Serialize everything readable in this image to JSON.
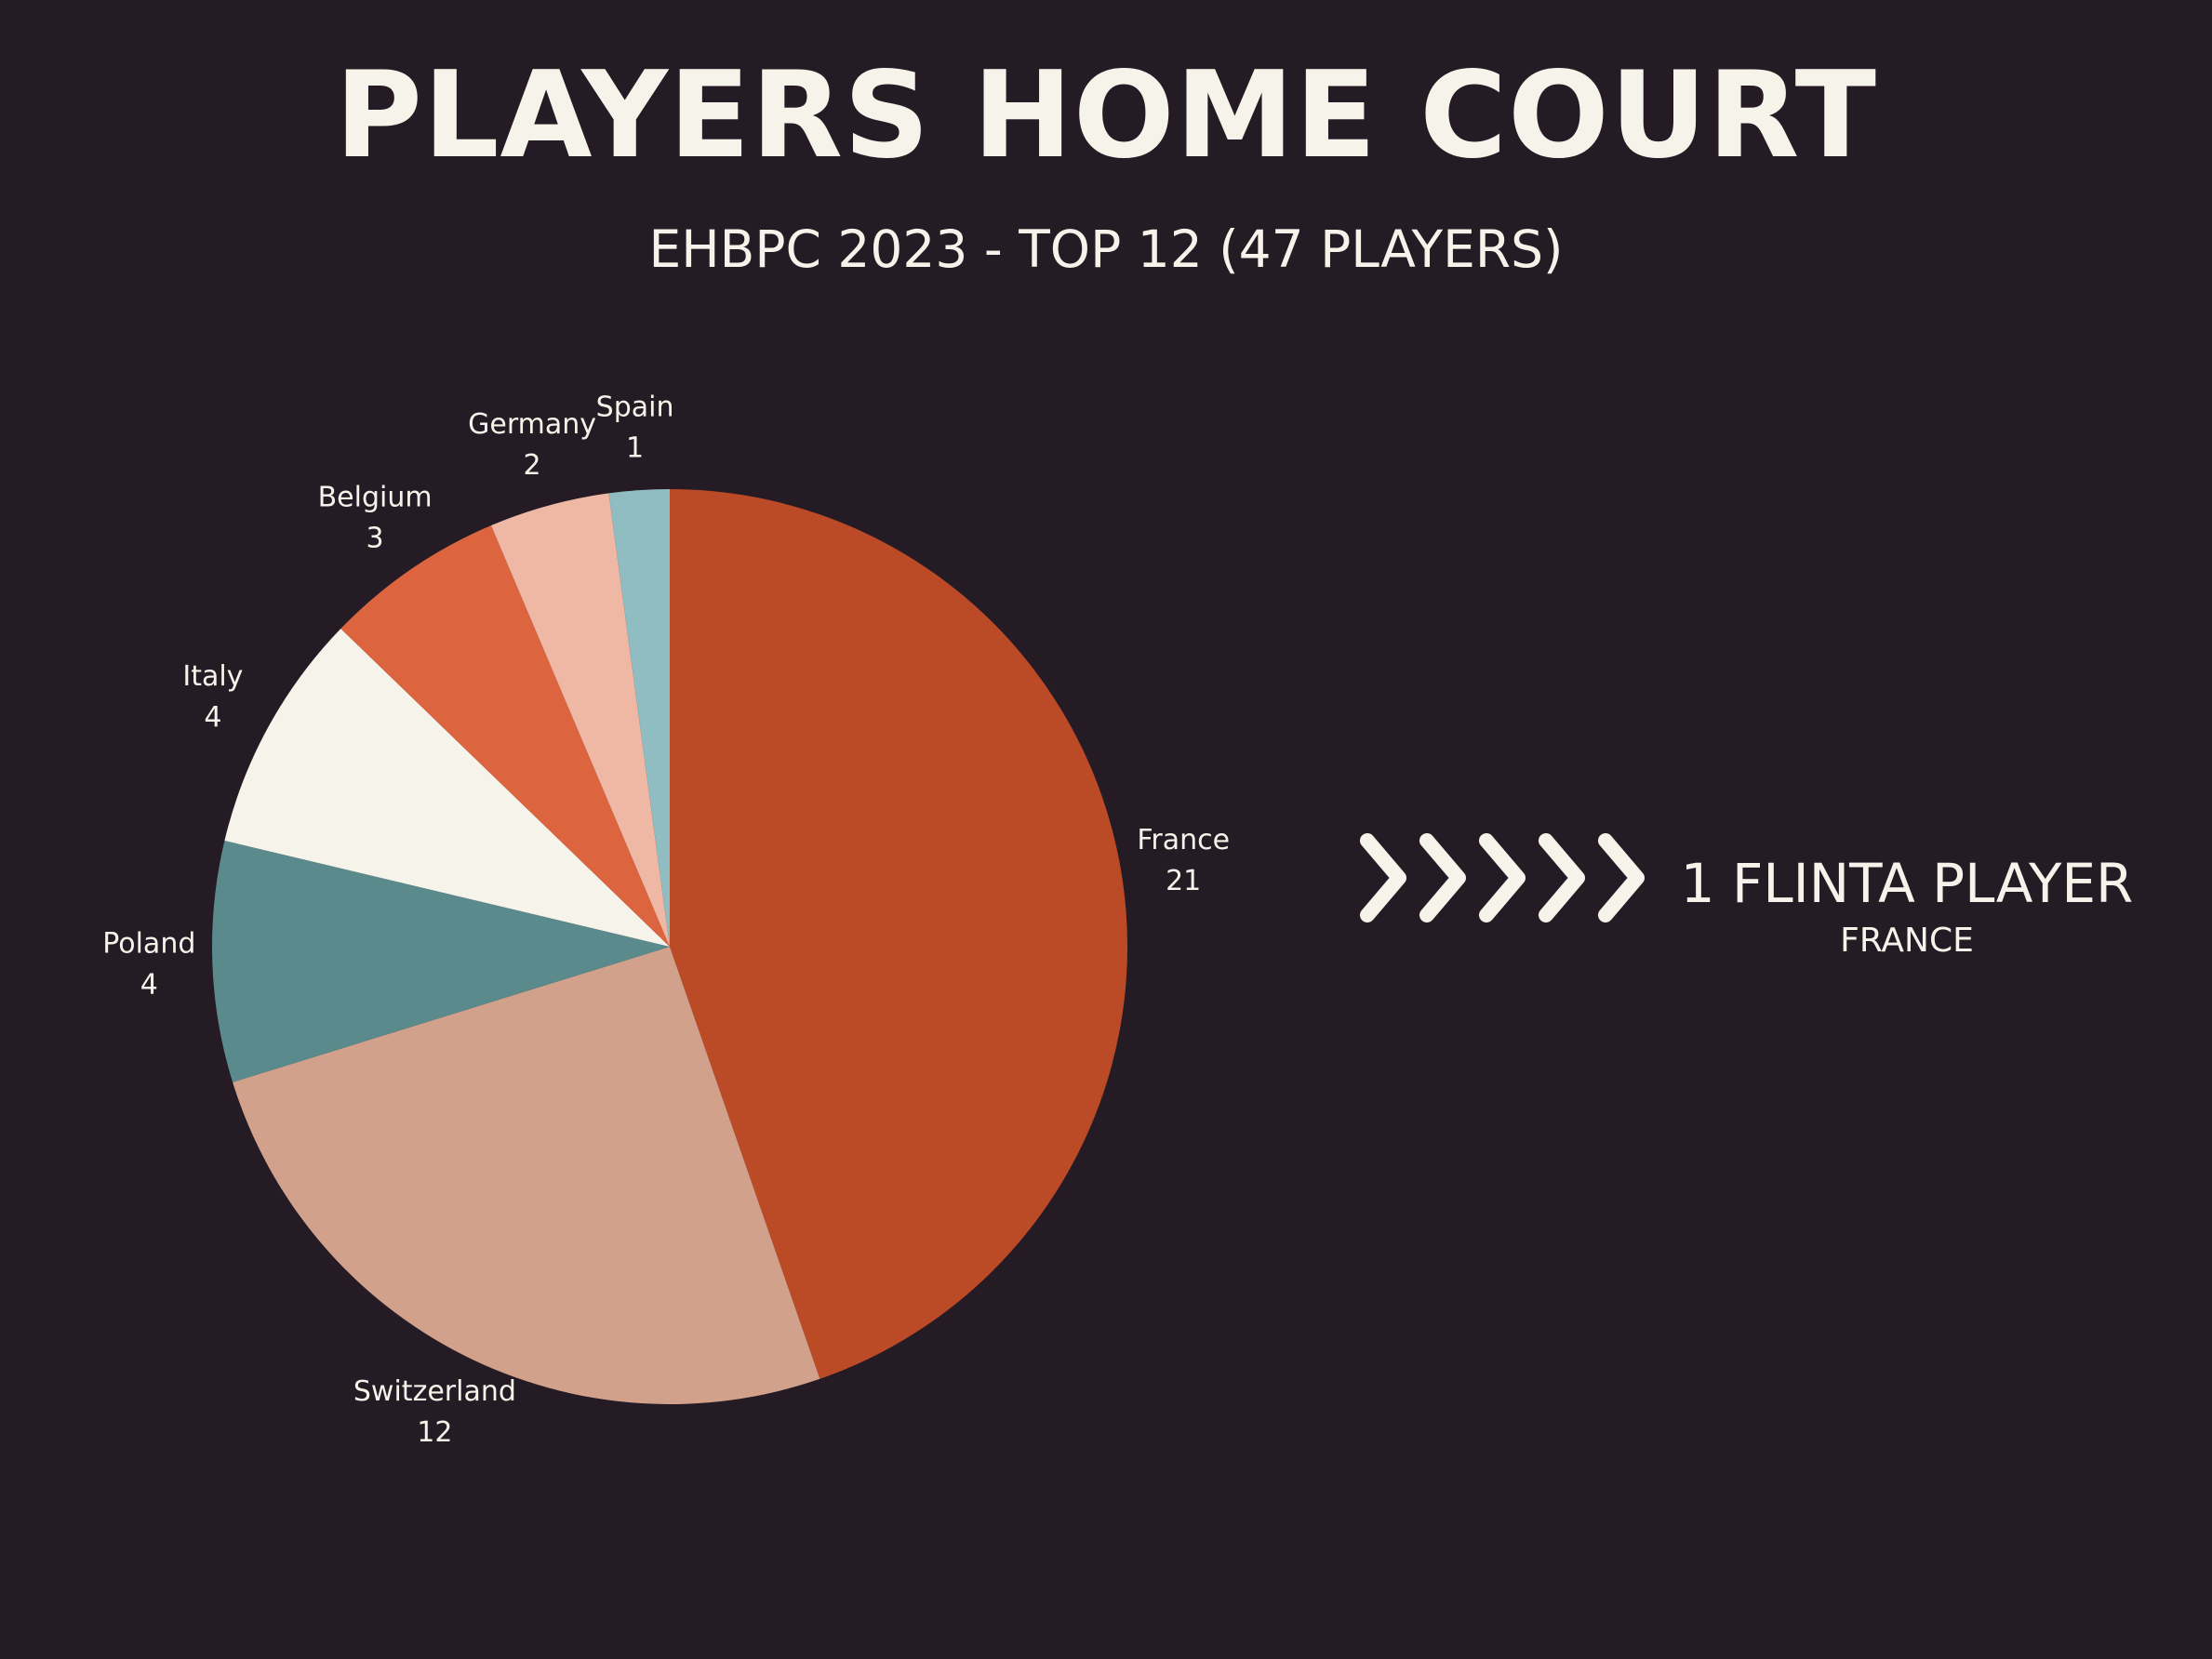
{
  "title": "PLAYERS HOME COURT",
  "subtitle": "EHBPC 2023 - TOP 12 (47 PLAYERS)",
  "callout": {
    "icon": "chevrons-right-icon",
    "main": "1 FLINTA PLAYER",
    "sub": "FRANCE"
  },
  "chart_data": {
    "type": "pie",
    "title": "PLAYERS HOME COURT",
    "subtitle": "EHBPC 2023 - TOP 12 (47 PLAYERS)",
    "start": "12 o'clock",
    "direction": "clockwise",
    "slices": [
      {
        "label": "France",
        "value": 21,
        "color": "#bb4a27"
      },
      {
        "label": "Switzerland",
        "value": 12,
        "color": "#d1a18b"
      },
      {
        "label": "Poland",
        "value": 4,
        "color": "#5a8a8c"
      },
      {
        "label": "Italy",
        "value": 4,
        "color": "#f6f4ea"
      },
      {
        "label": "Belgium",
        "value": 3,
        "color": "#dc643e"
      },
      {
        "label": "Germany",
        "value": 2,
        "color": "#eeb8a4"
      },
      {
        "label": "Spain",
        "value": 1,
        "color": "#8fbdc1"
      }
    ]
  }
}
